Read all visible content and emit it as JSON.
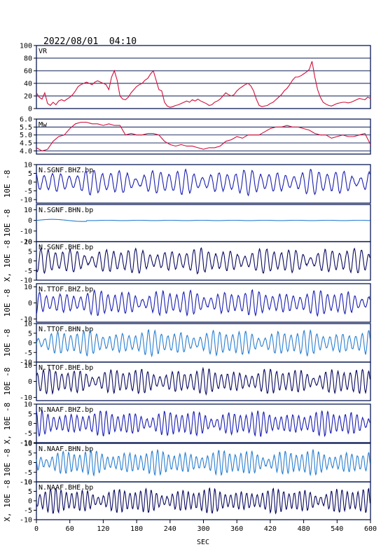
{
  "header": {
    "datetime": "2022/08/01  04:10"
  },
  "chart_data": {
    "type": "line",
    "xlabel": "SEC",
    "xlim": [
      0,
      600
    ],
    "xticks": [
      0,
      60,
      120,
      180,
      240,
      300,
      360,
      420,
      480,
      540,
      600
    ],
    "panels": [
      {
        "name": "VR",
        "ylim": [
          0,
          100
        ],
        "yticks": [
          0,
          20,
          40,
          60,
          80,
          100
        ],
        "grid": true,
        "color": "#d0103a",
        "x": [
          0,
          5,
          10,
          15,
          20,
          25,
          30,
          35,
          40,
          45,
          50,
          55,
          60,
          65,
          70,
          75,
          80,
          85,
          90,
          95,
          100,
          105,
          110,
          115,
          120,
          125,
          130,
          135,
          140,
          145,
          150,
          155,
          160,
          165,
          170,
          175,
          180,
          185,
          190,
          195,
          200,
          205,
          210,
          215,
          220,
          225,
          230,
          235,
          240,
          245,
          250,
          255,
          260,
          265,
          270,
          275,
          280,
          285,
          290,
          295,
          300,
          305,
          310,
          315,
          320,
          325,
          330,
          335,
          340,
          345,
          350,
          355,
          360,
          365,
          370,
          375,
          380,
          385,
          390,
          395,
          400,
          405,
          410,
          415,
          420,
          425,
          430,
          435,
          440,
          445,
          450,
          455,
          460,
          465,
          470,
          475,
          480,
          485,
          490,
          495,
          500,
          505,
          510,
          515,
          520,
          525,
          530,
          535,
          540,
          545,
          550,
          555,
          560,
          565,
          570,
          575,
          580,
          585,
          590,
          595,
          600
        ],
        "y": [
          25,
          18,
          15,
          25,
          8,
          5,
          10,
          6,
          12,
          14,
          12,
          15,
          18,
          22,
          28,
          35,
          38,
          40,
          42,
          40,
          38,
          42,
          44,
          42,
          40,
          38,
          30,
          50,
          60,
          45,
          20,
          15,
          14,
          18,
          25,
          30,
          35,
          38,
          40,
          45,
          48,
          55,
          60,
          45,
          30,
          28,
          10,
          4,
          2,
          3,
          5,
          6,
          8,
          10,
          12,
          10,
          14,
          12,
          15,
          12,
          10,
          8,
          5,
          6,
          10,
          12,
          15,
          20,
          25,
          22,
          20,
          22,
          28,
          32,
          35,
          38,
          40,
          36,
          28,
          15,
          5,
          3,
          4,
          5,
          8,
          10,
          14,
          18,
          22,
          28,
          32,
          38,
          45,
          50,
          50,
          52,
          55,
          58,
          62,
          75,
          50,
          30,
          18,
          10,
          7,
          5,
          4,
          6,
          8,
          9,
          10,
          10,
          9,
          10,
          12,
          14,
          16,
          15,
          14,
          18,
          16
        ]
      },
      {
        "name": "Mw",
        "ylim": [
          3.8,
          6.0
        ],
        "yticks": [
          4.0,
          4.5,
          5.0,
          5.5,
          6.0
        ],
        "ytick_labels": [
          "4.0",
          "4.5",
          "5.0",
          "5.5",
          "6.0"
        ],
        "grid": true,
        "color": "#d0103a",
        "x": [
          0,
          10,
          20,
          30,
          40,
          50,
          60,
          70,
          80,
          90,
          100,
          110,
          120,
          130,
          140,
          150,
          160,
          170,
          180,
          190,
          200,
          210,
          220,
          230,
          240,
          250,
          260,
          270,
          280,
          290,
          300,
          310,
          320,
          330,
          340,
          350,
          360,
          370,
          380,
          390,
          400,
          410,
          420,
          430,
          440,
          450,
          460,
          470,
          480,
          490,
          500,
          510,
          520,
          530,
          540,
          550,
          560,
          570,
          580,
          590,
          600
        ],
        "y": [
          4.2,
          4.0,
          4.1,
          4.6,
          4.9,
          5.0,
          5.4,
          5.7,
          5.8,
          5.8,
          5.7,
          5.7,
          5.6,
          5.7,
          5.6,
          5.6,
          5.0,
          5.1,
          5.0,
          5.0,
          5.1,
          5.1,
          5.0,
          4.6,
          4.4,
          4.3,
          4.4,
          4.3,
          4.3,
          4.2,
          4.1,
          4.2,
          4.2,
          4.3,
          4.6,
          4.7,
          4.9,
          4.8,
          5.0,
          5.0,
          5.0,
          5.2,
          5.4,
          5.5,
          5.5,
          5.6,
          5.5,
          5.5,
          5.4,
          5.3,
          5.1,
          5.0,
          5.0,
          4.8,
          4.9,
          5.0,
          4.9,
          4.9,
          5.0,
          5.1,
          4.4
        ]
      },
      {
        "name": "N.SGNF.BHZ.bp",
        "ylim": [
          -12,
          10
        ],
        "yticks": [
          -10,
          -5,
          0,
          5,
          10
        ],
        "unit": "10E -8",
        "color": "#1a1fb0"
      },
      {
        "name": "N.SGNF.BHN.bp",
        "ylim": [
          -20,
          15
        ],
        "yticks": [
          -20,
          -10,
          0,
          10
        ],
        "unit": "10E -8",
        "color": "#2a7fd0"
      },
      {
        "name": "N.SGNF.BHE.bp",
        "ylim": [
          -10,
          10
        ],
        "yticks": [
          -10,
          -5,
          0,
          5,
          10
        ],
        "unit": "X, 10E -8",
        "color": "#0a0a60"
      },
      {
        "name": "N.TTOF.BHZ.bp",
        "ylim": [
          -12,
          12
        ],
        "yticks": [
          -10,
          0,
          10
        ],
        "unit": "10E -8",
        "color": "#1a1fb0"
      },
      {
        "name": "N.TTOF.BHN.bp",
        "ylim": [
          -10,
          10
        ],
        "yticks": [
          -10,
          -5,
          0,
          5,
          10
        ],
        "unit": "10E -8",
        "color": "#2a7fd0"
      },
      {
        "name": "N.TTOF.BHE.bp",
        "ylim": [
          -12,
          12
        ],
        "yticks": [
          -10,
          0,
          10
        ],
        "unit": "10E -8",
        "color": "#0a0a60"
      },
      {
        "name": "N.NAAF.BHZ.bp",
        "ylim": [
          -10,
          10
        ],
        "yticks": [
          -10,
          -5,
          0,
          5,
          10
        ],
        "unit": "X, 10E -8",
        "color": "#1a1fb0"
      },
      {
        "name": "N.NAAF.BHN.bp",
        "ylim": [
          -10,
          10
        ],
        "yticks": [
          -10,
          -5,
          0,
          5,
          10
        ],
        "unit": "10E -8",
        "color": "#2a7fd0"
      },
      {
        "name": "N.NAAF.BHE.bp",
        "ylim": [
          -10,
          10
        ],
        "yticks": [
          -10,
          -5,
          0,
          5,
          10
        ],
        "unit": "X, 10E -8",
        "color": "#0a0a60"
      }
    ]
  }
}
